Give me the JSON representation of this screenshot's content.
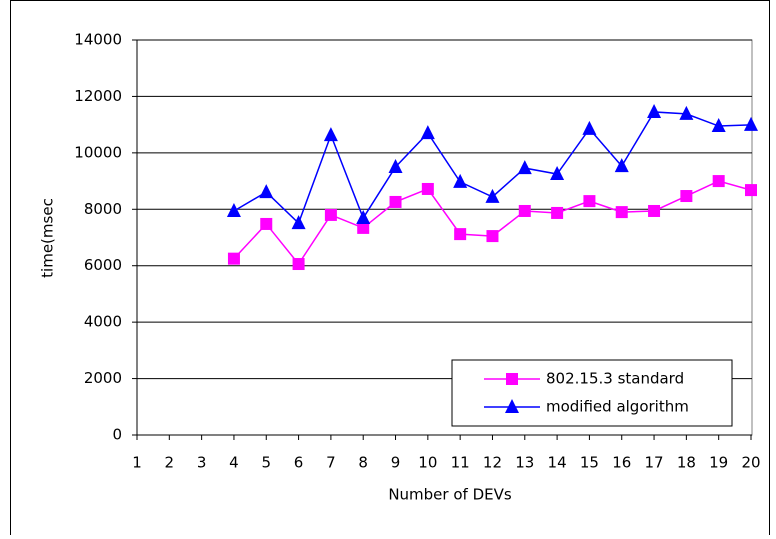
{
  "chart_data": {
    "type": "line",
    "x_label": "Number of DEVs",
    "y_label": "time(msec",
    "categories": [
      "1",
      "2",
      "3",
      "4",
      "5",
      "6",
      "7",
      "8",
      "9",
      "10",
      "11",
      "12",
      "13",
      "14",
      "15",
      "16",
      "17",
      "18",
      "19",
      "20"
    ],
    "series": [
      {
        "name": "802.15.3 standard",
        "color": "#ff00ff",
        "marker": "square",
        "values": [
          null,
          null,
          null,
          6250,
          7480,
          6060,
          7800,
          7340,
          8260,
          8720,
          7120,
          7050,
          7940,
          7870,
          8290,
          7900,
          7940,
          8470,
          9000,
          8680
        ]
      },
      {
        "name": "modified algorithm",
        "color": "#0000ff",
        "marker": "triangle",
        "values": [
          null,
          null,
          null,
          7940,
          8610,
          7510,
          10630,
          7690,
          9500,
          10700,
          8970,
          8440,
          9460,
          9250,
          10850,
          9530,
          11450,
          11380,
          10950,
          10990
        ]
      }
    ],
    "ylim": [
      0,
      14000
    ],
    "yticks": [
      0,
      2000,
      4000,
      6000,
      8000,
      10000,
      12000,
      14000
    ],
    "grid": true,
    "legend": "lower right"
  }
}
